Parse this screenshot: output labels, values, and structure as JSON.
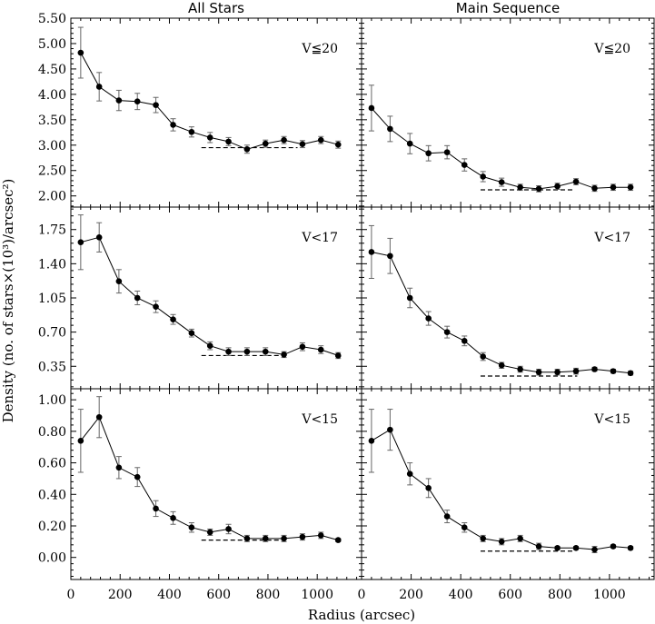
{
  "column_titles": [
    "All Stars",
    "Main Sequence"
  ],
  "ylabel": "Density (no. of stars×(10³)/arcsec²)",
  "xlabel": "Radius (arcsec)",
  "chart_data": [
    {
      "type": "line",
      "column": "All Stars",
      "label": "V≦20",
      "x": [
        40,
        115,
        195,
        270,
        345,
        415,
        490,
        565,
        640,
        715,
        790,
        865,
        940,
        1015,
        1085
      ],
      "y": [
        4.82,
        4.15,
        3.88,
        3.86,
        3.79,
        3.4,
        3.26,
        3.15,
        3.07,
        2.92,
        3.03,
        3.1,
        3.02,
        3.1,
        3.01
      ],
      "err": [
        0.5,
        0.28,
        0.2,
        0.16,
        0.15,
        0.12,
        0.1,
        0.1,
        0.08,
        0.08,
        0.07,
        0.07,
        0.07,
        0.07,
        0.07
      ],
      "background": {
        "x": [
          530,
          920
        ],
        "y": 2.95
      },
      "xlim": [
        0,
        1180
      ],
      "ylim": [
        1.78,
        5.5
      ],
      "yticks": [
        "5.50",
        "5.00",
        "4.50",
        "4.00",
        "3.50",
        "3.00",
        "2.50",
        "2.00"
      ]
    },
    {
      "type": "line",
      "column": "Main Sequence",
      "label": "V≦20",
      "x": [
        40,
        115,
        195,
        270,
        345,
        415,
        490,
        565,
        640,
        715,
        790,
        865,
        940,
        1015,
        1085
      ],
      "y": [
        3.73,
        3.32,
        3.03,
        2.84,
        2.86,
        2.61,
        2.38,
        2.27,
        2.17,
        2.14,
        2.19,
        2.28,
        2.15,
        2.17,
        2.17
      ],
      "err": [
        0.45,
        0.25,
        0.2,
        0.15,
        0.13,
        0.12,
        0.1,
        0.08,
        0.06,
        0.06,
        0.06,
        0.06,
        0.06,
        0.06,
        0.06
      ],
      "background": {
        "x": [
          480,
          860
        ],
        "y": 2.12
      },
      "xlim": [
        0,
        1180
      ],
      "ylim": [
        1.78,
        5.5
      ]
    },
    {
      "type": "line",
      "column": "All Stars",
      "label": "V<17",
      "x": [
        40,
        115,
        195,
        270,
        345,
        415,
        490,
        565,
        640,
        715,
        790,
        865,
        940,
        1015,
        1085
      ],
      "y": [
        1.62,
        1.67,
        1.22,
        1.05,
        0.96,
        0.83,
        0.69,
        0.56,
        0.5,
        0.5,
        0.5,
        0.47,
        0.55,
        0.52,
        0.46
      ],
      "err": [
        0.28,
        0.15,
        0.12,
        0.07,
        0.06,
        0.05,
        0.04,
        0.04,
        0.04,
        0.04,
        0.04,
        0.03,
        0.04,
        0.04,
        0.03
      ],
      "background": {
        "x": [
          530,
          870
        ],
        "y": 0.46
      },
      "xlim": [
        0,
        1180
      ],
      "ylim": [
        0.12,
        1.98
      ],
      "yticks": [
        "1.75",
        "1.40",
        "1.05",
        "0.70",
        "0.35"
      ]
    },
    {
      "type": "line",
      "column": "Main Sequence",
      "label": "V<17",
      "x": [
        40,
        115,
        195,
        270,
        345,
        415,
        490,
        565,
        640,
        715,
        790,
        865,
        940,
        1015,
        1085
      ],
      "y": [
        1.52,
        1.48,
        1.05,
        0.84,
        0.7,
        0.61,
        0.45,
        0.36,
        0.32,
        0.29,
        0.29,
        0.3,
        0.32,
        0.3,
        0.28
      ],
      "err": [
        0.27,
        0.18,
        0.1,
        0.07,
        0.06,
        0.05,
        0.04,
        0.03,
        0.03,
        0.03,
        0.03,
        0.03,
        0.02,
        0.02,
        0.02
      ],
      "background": {
        "x": [
          480,
          870
        ],
        "y": 0.25
      },
      "xlim": [
        0,
        1180
      ],
      "ylim": [
        0.12,
        1.98
      ]
    },
    {
      "type": "line",
      "column": "All Stars",
      "label": "V<15",
      "x": [
        40,
        115,
        195,
        270,
        345,
        415,
        490,
        565,
        640,
        715,
        790,
        865,
        940,
        1015,
        1085
      ],
      "y": [
        0.74,
        0.89,
        0.57,
        0.51,
        0.31,
        0.25,
        0.19,
        0.16,
        0.18,
        0.12,
        0.12,
        0.12,
        0.13,
        0.14,
        0.11
      ],
      "err": [
        0.2,
        0.13,
        0.07,
        0.06,
        0.05,
        0.04,
        0.03,
        0.02,
        0.03,
        0.02,
        0.02,
        0.02,
        0.02,
        0.02,
        0.01
      ],
      "background": {
        "x": [
          530,
          860
        ],
        "y": 0.11
      },
      "xlim": [
        0,
        1180
      ],
      "ylim": [
        -0.14,
        1.07
      ],
      "yticks": [
        "1.00",
        "0.80",
        "0.60",
        "0.40",
        "0.20",
        "0.00"
      ]
    },
    {
      "type": "line",
      "column": "Main Sequence",
      "label": "V<15",
      "x": [
        40,
        115,
        195,
        270,
        345,
        415,
        490,
        565,
        640,
        715,
        790,
        865,
        940,
        1015,
        1085
      ],
      "y": [
        0.74,
        0.81,
        0.53,
        0.44,
        0.26,
        0.19,
        0.12,
        0.1,
        0.12,
        0.07,
        0.06,
        0.06,
        0.05,
        0.07,
        0.06
      ],
      "err": [
        0.2,
        0.13,
        0.07,
        0.06,
        0.04,
        0.03,
        0.02,
        0.02,
        0.02,
        0.02,
        0.01,
        0.01,
        0.02,
        0.01,
        0.01
      ],
      "background": {
        "x": [
          480,
          860
        ],
        "y": 0.04
      },
      "xlim": [
        0,
        1180
      ],
      "ylim": [
        -0.14,
        1.07
      ]
    }
  ],
  "xticks": [
    "0",
    "200",
    "400",
    "600",
    "800",
    "1000"
  ]
}
